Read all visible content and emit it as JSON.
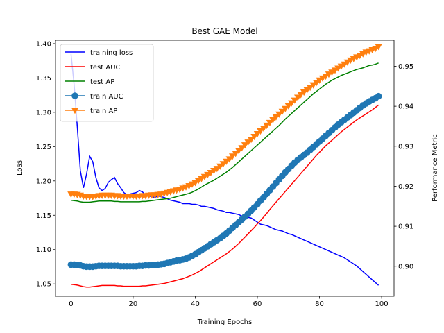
{
  "chart_data": {
    "type": "line",
    "title": "Best GAE Model",
    "xlabel": "Training Epochs",
    "ylabel_left": "Loss",
    "ylabel_right": "Performance Metric",
    "xlim": [
      -5,
      104
    ],
    "ylim_left": [
      1.032,
      1.405
    ],
    "ylim_right": [
      0.8925,
      0.9565
    ],
    "xticks": [
      0,
      20,
      40,
      60,
      80,
      100
    ],
    "yticks_left": [
      "1.05",
      "1.10",
      "1.15",
      "1.20",
      "1.25",
      "1.30",
      "1.35",
      "1.40"
    ],
    "yticks_right": [
      "0.90",
      "0.91",
      "0.92",
      "0.93",
      "0.94",
      "0.95"
    ],
    "legend_position": "top-left",
    "grid": false,
    "series": [
      {
        "name": "training loss",
        "axis": "left",
        "color": "#0000ff",
        "marker": "none",
        "x": [
          0,
          1,
          2,
          3,
          4,
          5,
          6,
          7,
          8,
          9,
          10,
          11,
          12,
          13,
          14,
          15,
          16,
          17,
          18,
          19,
          20,
          21,
          22,
          23,
          24,
          25,
          26,
          27,
          28,
          29,
          30,
          31,
          32,
          33,
          34,
          35,
          36,
          37,
          38,
          39,
          40,
          41,
          42,
          43,
          44,
          45,
          46,
          47,
          48,
          49,
          50,
          51,
          52,
          53,
          54,
          55,
          56,
          57,
          58,
          59,
          60,
          61,
          62,
          63,
          64,
          65,
          66,
          67,
          68,
          69,
          70,
          71,
          72,
          73,
          74,
          75,
          76,
          77,
          78,
          79,
          80,
          81,
          82,
          83,
          84,
          85,
          86,
          87,
          88,
          89,
          90,
          91,
          92,
          93,
          94,
          95,
          96,
          97,
          98,
          99
        ],
        "values": [
          1.385,
          1.34,
          1.28,
          1.215,
          1.19,
          1.21,
          1.236,
          1.228,
          1.205,
          1.19,
          1.186,
          1.189,
          1.198,
          1.202,
          1.205,
          1.196,
          1.19,
          1.183,
          1.18,
          1.181,
          1.182,
          1.183,
          1.186,
          1.184,
          1.179,
          1.178,
          1.177,
          1.176,
          1.178,
          1.177,
          1.176,
          1.174,
          1.172,
          1.171,
          1.17,
          1.169,
          1.167,
          1.167,
          1.167,
          1.166,
          1.166,
          1.165,
          1.163,
          1.163,
          1.162,
          1.161,
          1.16,
          1.158,
          1.157,
          1.156,
          1.154,
          1.154,
          1.153,
          1.152,
          1.151,
          1.149,
          1.148,
          1.147,
          1.146,
          1.143,
          1.14,
          1.137,
          1.136,
          1.135,
          1.133,
          1.131,
          1.129,
          1.128,
          1.127,
          1.125,
          1.123,
          1.122,
          1.12,
          1.118,
          1.116,
          1.114,
          1.112,
          1.11,
          1.108,
          1.106,
          1.104,
          1.102,
          1.1,
          1.098,
          1.096,
          1.094,
          1.092,
          1.09,
          1.088,
          1.085,
          1.082,
          1.079,
          1.076,
          1.072,
          1.068,
          1.064,
          1.06,
          1.056,
          1.052,
          1.048
        ]
      },
      {
        "name": "test AUC",
        "axis": "right",
        "color": "#ff0000",
        "marker": "none",
        "x": [
          0,
          1,
          2,
          3,
          4,
          5,
          6,
          7,
          8,
          9,
          10,
          11,
          12,
          13,
          14,
          15,
          16,
          17,
          18,
          19,
          20,
          21,
          22,
          23,
          24,
          25,
          26,
          27,
          28,
          29,
          30,
          31,
          32,
          33,
          34,
          35,
          36,
          37,
          38,
          39,
          40,
          41,
          42,
          43,
          44,
          45,
          46,
          47,
          48,
          49,
          50,
          51,
          52,
          53,
          54,
          55,
          56,
          57,
          58,
          59,
          60,
          61,
          62,
          63,
          64,
          65,
          66,
          67,
          68,
          69,
          70,
          71,
          72,
          73,
          74,
          75,
          76,
          77,
          78,
          79,
          80,
          81,
          82,
          83,
          84,
          85,
          86,
          87,
          88,
          89,
          90,
          91,
          92,
          93,
          94,
          95,
          96,
          97,
          98,
          99
        ],
        "values": [
          0.8955,
          0.8954,
          0.8953,
          0.8951,
          0.8949,
          0.8948,
          0.8948,
          0.8949,
          0.895,
          0.8951,
          0.8952,
          0.8952,
          0.8952,
          0.8952,
          0.8952,
          0.8951,
          0.8951,
          0.895,
          0.895,
          0.895,
          0.895,
          0.895,
          0.895,
          0.8951,
          0.8951,
          0.8952,
          0.8953,
          0.8954,
          0.8955,
          0.8956,
          0.8957,
          0.8959,
          0.8961,
          0.8963,
          0.8965,
          0.8967,
          0.8969,
          0.8972,
          0.8975,
          0.8978,
          0.8982,
          0.8986,
          0.8991,
          0.8996,
          0.9001,
          0.9006,
          0.9011,
          0.9016,
          0.9021,
          0.9026,
          0.9031,
          0.9037,
          0.9043,
          0.905,
          0.9057,
          0.9065,
          0.9073,
          0.9081,
          0.9089,
          0.9097,
          0.9106,
          0.9114,
          0.9123,
          0.9132,
          0.9142,
          0.9151,
          0.916,
          0.9169,
          0.9178,
          0.9187,
          0.9196,
          0.9205,
          0.9214,
          0.9223,
          0.9232,
          0.9241,
          0.925,
          0.9259,
          0.9268,
          0.9277,
          0.9285,
          0.9293,
          0.9301,
          0.9308,
          0.9315,
          0.9322,
          0.9329,
          0.9336,
          0.9342,
          0.9348,
          0.9354,
          0.936,
          0.9366,
          0.9371,
          0.9376,
          0.9381,
          0.9386,
          0.9391,
          0.9397,
          0.9403
        ]
      },
      {
        "name": "test AP",
        "axis": "right",
        "color": "#008000",
        "marker": "none",
        "x": [
          0,
          1,
          2,
          3,
          4,
          5,
          6,
          7,
          8,
          9,
          10,
          11,
          12,
          13,
          14,
          15,
          16,
          17,
          18,
          19,
          20,
          21,
          22,
          23,
          24,
          25,
          26,
          27,
          28,
          29,
          30,
          31,
          32,
          33,
          34,
          35,
          36,
          37,
          38,
          39,
          40,
          41,
          42,
          43,
          44,
          45,
          46,
          47,
          48,
          49,
          50,
          51,
          52,
          53,
          54,
          55,
          56,
          57,
          58,
          59,
          60,
          61,
          62,
          63,
          64,
          65,
          66,
          67,
          68,
          69,
          70,
          71,
          72,
          73,
          74,
          75,
          76,
          77,
          78,
          79,
          80,
          81,
          82,
          83,
          84,
          85,
          86,
          87,
          88,
          89,
          90,
          91,
          92,
          93,
          94,
          95,
          96,
          97,
          98,
          99
        ],
        "values": [
          0.9165,
          0.9164,
          0.9163,
          0.9161,
          0.916,
          0.916,
          0.916,
          0.9161,
          0.9162,
          0.9163,
          0.9163,
          0.9163,
          0.9163,
          0.9163,
          0.9162,
          0.9162,
          0.9161,
          0.9161,
          0.9161,
          0.9161,
          0.9161,
          0.9161,
          0.9161,
          0.9162,
          0.9162,
          0.9163,
          0.9164,
          0.9165,
          0.9166,
          0.9167,
          0.9168,
          0.9169,
          0.917,
          0.9172,
          0.9174,
          0.9176,
          0.9178,
          0.918,
          0.9182,
          0.9185,
          0.9189,
          0.9193,
          0.9198,
          0.9203,
          0.9207,
          0.9211,
          0.9215,
          0.922,
          0.9225,
          0.923,
          0.9235,
          0.9241,
          0.9247,
          0.9254,
          0.9261,
          0.9268,
          0.9275,
          0.9282,
          0.9289,
          0.9296,
          0.9303,
          0.931,
          0.9317,
          0.9324,
          0.9331,
          0.9338,
          0.9345,
          0.9352,
          0.936,
          0.9368,
          0.9375,
          0.9382,
          0.9389,
          0.9396,
          0.9403,
          0.941,
          0.9417,
          0.9424,
          0.9431,
          0.9437,
          0.9443,
          0.9449,
          0.9455,
          0.946,
          0.9465,
          0.9469,
          0.9473,
          0.9477,
          0.948,
          0.9483,
          0.9486,
          0.9489,
          0.9492,
          0.9494,
          0.9496,
          0.9499,
          0.9502,
          0.9503,
          0.9505,
          0.9508
        ]
      },
      {
        "name": "train AUC",
        "axis": "right",
        "color": "#1f77b4",
        "marker": "circle",
        "x": [
          0,
          1,
          2,
          3,
          4,
          5,
          6,
          7,
          8,
          9,
          10,
          11,
          12,
          13,
          14,
          15,
          16,
          17,
          18,
          19,
          20,
          21,
          22,
          23,
          24,
          25,
          26,
          27,
          28,
          29,
          30,
          31,
          32,
          33,
          34,
          35,
          36,
          37,
          38,
          39,
          40,
          41,
          42,
          43,
          44,
          45,
          46,
          47,
          48,
          49,
          50,
          51,
          52,
          53,
          54,
          55,
          56,
          57,
          58,
          59,
          60,
          61,
          62,
          63,
          64,
          65,
          66,
          67,
          68,
          69,
          70,
          71,
          72,
          73,
          74,
          75,
          76,
          77,
          78,
          79,
          80,
          81,
          82,
          83,
          84,
          85,
          86,
          87,
          88,
          89,
          90,
          91,
          92,
          93,
          94,
          95,
          96,
          97,
          98,
          99
        ],
        "values": [
          0.9004,
          0.9004,
          0.9003,
          0.9002,
          0.9,
          0.8999,
          0.8999,
          0.8999,
          0.9,
          0.9001,
          0.9001,
          0.9001,
          0.9001,
          0.9001,
          0.9001,
          0.9001,
          0.9,
          0.9,
          0.9,
          0.9,
          0.9,
          0.9,
          0.9001,
          0.9001,
          0.9002,
          0.9002,
          0.9003,
          0.9003,
          0.9004,
          0.9005,
          0.9006,
          0.9008,
          0.901,
          0.9012,
          0.9014,
          0.9015,
          0.9017,
          0.9019,
          0.9022,
          0.9026,
          0.903,
          0.9035,
          0.904,
          0.9045,
          0.905,
          0.9055,
          0.906,
          0.9065,
          0.907,
          0.9076,
          0.9082,
          0.9089,
          0.9096,
          0.9103,
          0.911,
          0.9117,
          0.9124,
          0.9131,
          0.9139,
          0.9147,
          0.9155,
          0.9164,
          0.9172,
          0.9181,
          0.919,
          0.9199,
          0.9208,
          0.9217,
          0.9226,
          0.9235,
          0.9243,
          0.9251,
          0.9259,
          0.9266,
          0.9272,
          0.9278,
          0.9284,
          0.9291,
          0.9298,
          0.9305,
          0.9312,
          0.9319,
          0.9326,
          0.9333,
          0.934,
          0.9347,
          0.9354,
          0.936,
          0.9366,
          0.9372,
          0.9378,
          0.9384,
          0.939,
          0.9396,
          0.9402,
          0.9407,
          0.9412,
          0.9416,
          0.942,
          0.9425
        ]
      },
      {
        "name": "train AP",
        "axis": "right",
        "color": "#ff7f0e",
        "marker": "triangle-down",
        "x": [
          0,
          1,
          2,
          3,
          4,
          5,
          6,
          7,
          8,
          9,
          10,
          11,
          12,
          13,
          14,
          15,
          16,
          17,
          18,
          19,
          20,
          21,
          22,
          23,
          24,
          25,
          26,
          27,
          28,
          29,
          30,
          31,
          32,
          33,
          34,
          35,
          36,
          37,
          38,
          39,
          40,
          41,
          42,
          43,
          44,
          45,
          46,
          47,
          48,
          49,
          50,
          51,
          52,
          53,
          54,
          55,
          56,
          57,
          58,
          59,
          60,
          61,
          62,
          63,
          64,
          65,
          66,
          67,
          68,
          69,
          70,
          71,
          72,
          73,
          74,
          75,
          76,
          77,
          78,
          79,
          80,
          81,
          82,
          83,
          84,
          85,
          86,
          87,
          88,
          89,
          90,
          91,
          92,
          93,
          94,
          95,
          96,
          97,
          98,
          99
        ],
        "values": [
          0.918,
          0.918,
          0.9179,
          0.9177,
          0.9175,
          0.9174,
          0.9174,
          0.9174,
          0.9175,
          0.9176,
          0.9177,
          0.9177,
          0.9177,
          0.9177,
          0.9176,
          0.9176,
          0.9175,
          0.9175,
          0.9175,
          0.9175,
          0.9175,
          0.9175,
          0.9175,
          0.9176,
          0.9176,
          0.9177,
          0.9178,
          0.9178,
          0.9179,
          0.918,
          0.9182,
          0.9184,
          0.9186,
          0.9188,
          0.919,
          0.9192,
          0.9195,
          0.9198,
          0.9201,
          0.9205,
          0.9209,
          0.9214,
          0.9219,
          0.9224,
          0.9229,
          0.9234,
          0.9239,
          0.9244,
          0.925,
          0.9256,
          0.9262,
          0.9268,
          0.9275,
          0.9282,
          0.9289,
          0.9296,
          0.9303,
          0.931,
          0.9317,
          0.9324,
          0.9331,
          0.9338,
          0.9345,
          0.9352,
          0.9359,
          0.9366,
          0.9373,
          0.938,
          0.9387,
          0.9394,
          0.9401,
          0.9408,
          0.9415,
          0.9422,
          0.9429,
          0.9435,
          0.9441,
          0.9447,
          0.9453,
          0.9459,
          0.9465,
          0.947,
          0.9475,
          0.948,
          0.9485,
          0.949,
          0.9495,
          0.95,
          0.9505,
          0.951,
          0.9515,
          0.9519,
          0.9523,
          0.9527,
          0.9531,
          0.9535,
          0.9538,
          0.9541,
          0.9544,
          0.9549
        ]
      }
    ]
  }
}
